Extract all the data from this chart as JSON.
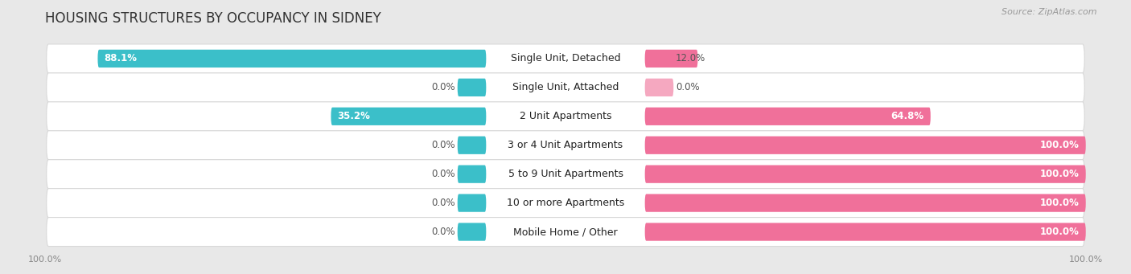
{
  "title": "HOUSING STRUCTURES BY OCCUPANCY IN SIDNEY",
  "source": "Source: ZipAtlas.com",
  "categories": [
    "Single Unit, Detached",
    "Single Unit, Attached",
    "2 Unit Apartments",
    "3 or 4 Unit Apartments",
    "5 to 9 Unit Apartments",
    "10 or more Apartments",
    "Mobile Home / Other"
  ],
  "owner_pct": [
    88.1,
    0.0,
    35.2,
    0.0,
    0.0,
    0.0,
    0.0
  ],
  "renter_pct": [
    12.0,
    0.0,
    64.8,
    100.0,
    100.0,
    100.0,
    100.0
  ],
  "owner_color": "#3bbfc9",
  "renter_color": "#f0709a",
  "renter_color_light": "#f5a8c0",
  "bg_color": "#e8e8e8",
  "row_bg_color": "#ffffff",
  "row_stripe_color": "#f2f2f2",
  "bar_height": 0.62,
  "title_fontsize": 12,
  "label_fontsize": 9,
  "pct_fontsize": 8.5,
  "source_fontsize": 8,
  "legend_fontsize": 9,
  "axis_label_fontsize": 8
}
